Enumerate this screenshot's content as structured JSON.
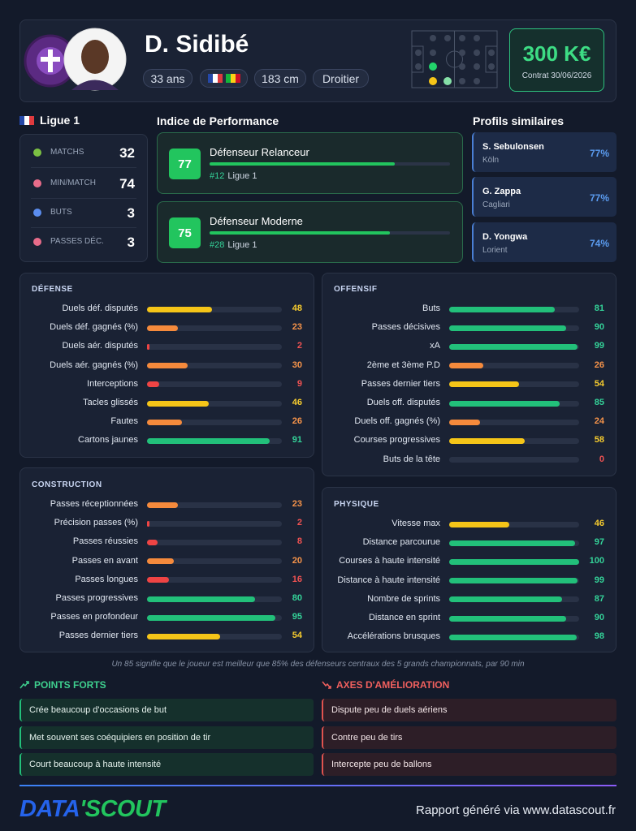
{
  "header": {
    "name": "D. Sidibé",
    "tags": [
      "33 ans",
      "183 cm",
      "Droitier"
    ],
    "market_value": "300 K€",
    "contract": "Contrat 30/06/2026"
  },
  "league": {
    "name": "Ligue 1",
    "stats": [
      {
        "label": "MATCHS",
        "value": 32
      },
      {
        "label": "MIN/MATCH",
        "value": 74
      },
      {
        "label": "BUTS",
        "value": 3
      },
      {
        "label": "PASSES DÉC.",
        "value": 3
      }
    ]
  },
  "performance": {
    "title": "Indice de Performance",
    "scale": [
      0,
      100
    ],
    "items": [
      {
        "score": 77,
        "label": "Défenseur Relanceur",
        "rank": "#12",
        "league": "Ligue 1"
      },
      {
        "score": 75,
        "label": "Défenseur Moderne",
        "rank": "#28",
        "league": "Ligue 1"
      }
    ]
  },
  "similar": {
    "title": "Profils similaires",
    "items": [
      {
        "name": "S. Sebulonsen",
        "club": "Köln",
        "similarity": "77%"
      },
      {
        "name": "G. Zappa",
        "club": "Cagliari",
        "similarity": "77%"
      },
      {
        "name": "D. Yongwa",
        "club": "Lorient",
        "similarity": "74%"
      }
    ]
  },
  "stats_scale": [
    0,
    100
  ],
  "sections": [
    {
      "title": "DÉFENSE",
      "rows": [
        {
          "label": "Duels déf. disputés",
          "value": 48
        },
        {
          "label": "Duels déf. gagnés (%)",
          "value": 23
        },
        {
          "label": "Duels aér. disputés",
          "value": 2
        },
        {
          "label": "Duels aér. gagnés (%)",
          "value": 30
        },
        {
          "label": "Interceptions",
          "value": 9
        },
        {
          "label": "Tacles glissés",
          "value": 46
        },
        {
          "label": "Fautes",
          "value": 26
        },
        {
          "label": "Cartons jaunes",
          "value": 91
        }
      ]
    },
    {
      "title": "OFFENSIF",
      "rows": [
        {
          "label": "Buts",
          "value": 81
        },
        {
          "label": "Passes décisives",
          "value": 90
        },
        {
          "label": "xA",
          "value": 99
        },
        {
          "label": "2ème et 3ème P.D",
          "value": 26
        },
        {
          "label": "Passes dernier tiers",
          "value": 54
        },
        {
          "label": "Duels off. disputés",
          "value": 85
        },
        {
          "label": "Duels off. gagnés (%)",
          "value": 24
        },
        {
          "label": "Courses progressives",
          "value": 58
        },
        {
          "label": "Buts de la tête",
          "value": 0
        }
      ]
    },
    {
      "title": "CONSTRUCTION",
      "rows": [
        {
          "label": "Passes réceptionnées",
          "value": 23
        },
        {
          "label": "Précision passes (%)",
          "value": 2
        },
        {
          "label": "Passes réussies",
          "value": 8
        },
        {
          "label": "Passes en avant",
          "value": 20
        },
        {
          "label": "Passes longues",
          "value": 16
        },
        {
          "label": "Passes progressives",
          "value": 80
        },
        {
          "label": "Passes en profondeur",
          "value": 95
        },
        {
          "label": "Passes dernier tiers",
          "value": 54
        }
      ]
    },
    {
      "title": "PHYSIQUE",
      "rows": [
        {
          "label": "Vitesse max",
          "value": 46
        },
        {
          "label": "Distance parcourue",
          "value": 97
        },
        {
          "label": "Courses à haute intensité",
          "value": 100
        },
        {
          "label": "Distance à haute intensité",
          "value": 99
        },
        {
          "label": "Nombre de sprints",
          "value": 87
        },
        {
          "label": "Distance en sprint",
          "value": 90
        },
        {
          "label": "Accélérations brusques",
          "value": 98
        }
      ]
    }
  ],
  "footnote": "Un 85 signifie que le joueur est meilleur que 85% des défenseurs centraux des 5 grands championnats, par 90 min",
  "strengths": {
    "title": "POINTS FORTS",
    "items": [
      "Crée beaucoup d'occasions de but",
      "Met souvent ses coéquipiers en position de tir",
      "Court beaucoup à haute intensité"
    ]
  },
  "improvements": {
    "title": "AXES D'AMÉLIORATION",
    "items": [
      "Dispute peu de duels aériens",
      "Contre peu de tirs",
      "Intercepte peu de ballons"
    ]
  },
  "footer": {
    "brand": [
      "DATA",
      "'SCOUT"
    ],
    "report": "Rapport généré via www.datascout.fr"
  }
}
